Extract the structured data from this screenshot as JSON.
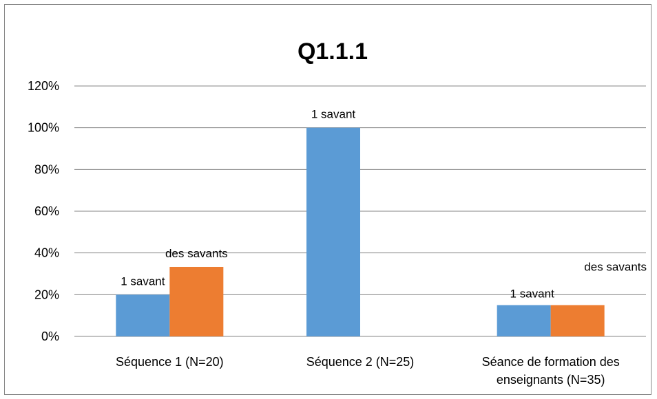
{
  "chart_data": {
    "type": "bar",
    "title": "Q1.1.1",
    "categories": [
      [
        "Séquence 1 (N=20)"
      ],
      [
        "Séquence 2 (N=25)"
      ],
      [
        "Séance de formation des",
        "enseignants (N=35)"
      ]
    ],
    "series": [
      {
        "values": [
          0.2,
          1.0,
          0.15
        ],
        "color": "#5b9bd5"
      },
      {
        "values": [
          0.333,
          0,
          0.15
        ],
        "color": "#ed7d31"
      }
    ],
    "data_labels": [
      [
        "1 savant",
        "1 savant",
        "1 savant"
      ],
      [
        "des savants",
        "",
        "des savants"
      ]
    ],
    "yticks": [
      "0%",
      "20%",
      "40%",
      "60%",
      "80%",
      "100%",
      "120%"
    ],
    "ylim": [
      0,
      1.2
    ],
    "grid": true,
    "legend": "none",
    "colors": {
      "gridline": "#868686"
    }
  }
}
